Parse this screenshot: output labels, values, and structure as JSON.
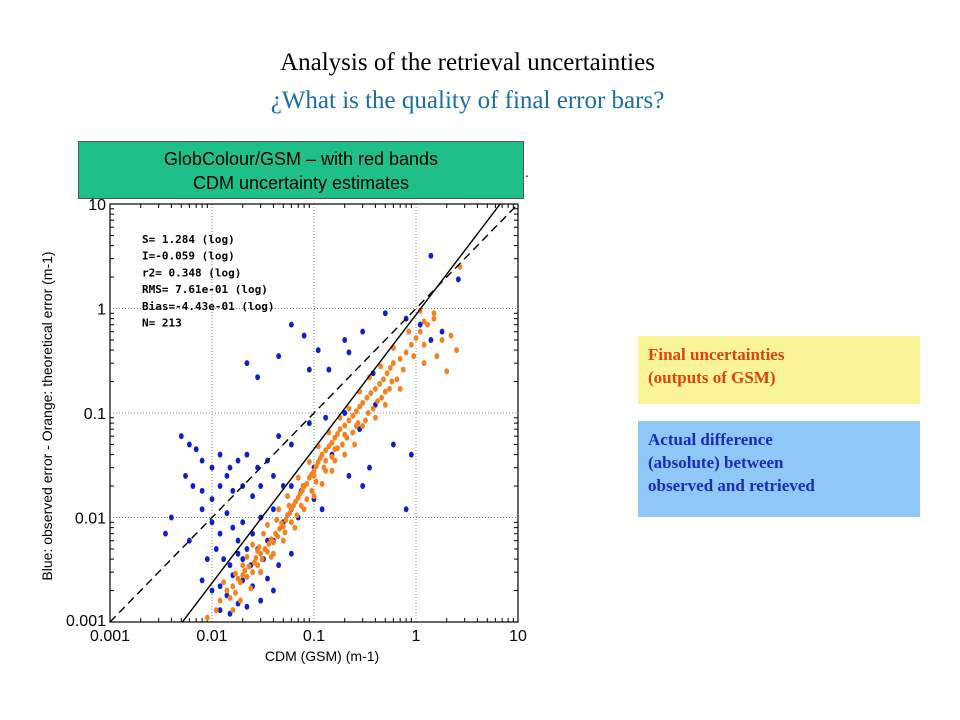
{
  "title": "Analysis of the retrieval uncertainties",
  "subtitle": "¿What is the quality of final error bars?",
  "colors": {
    "subtitle": "#1a6e9e",
    "green_box": "#1fbf8a",
    "final_box_bg": "#fbf59a",
    "final_box_text": "#e0420c",
    "actual_box_bg": "#8fc8f7",
    "actual_box_text": "#1b2bb8",
    "blue_points": "#1020c8",
    "orange_points": "#f58220"
  },
  "label_box": {
    "line1": "GlobColour/GSM – with red bands",
    "line2": "CDM uncertainty estimates"
  },
  "stray_dot": ".",
  "legend": {
    "final": {
      "line1": "Final uncertainties",
      "line2": "(outputs of GSM)"
    },
    "actual": {
      "line1": "Actual difference",
      "line2": "(absolute) between",
      "line3": "observed and retrieved"
    }
  },
  "chart_data": {
    "type": "scatter",
    "xlabel": "CDM (GSM) (m-1)",
    "ylabel": "Blue: observed error - Orange: theoretical error (m-1)",
    "xscale": "log",
    "yscale": "log",
    "xlim": [
      0.001,
      10
    ],
    "ylim": [
      0.001,
      10
    ],
    "grid": true,
    "x_ticks": [
      "0.001",
      "0.01",
      "0.1",
      "1",
      "10"
    ],
    "y_ticks": [
      "0.001",
      "0.01",
      "0.1",
      "1",
      "10"
    ],
    "stats": [
      "S= 1.284 (log)",
      "I=-0.059 (log)",
      "r2= 0.348 (log)",
      "RMS= 7.61e-01 (log)",
      "Bias=-4.43e-01 (log)",
      "N= 213"
    ],
    "lines": [
      {
        "kind": "regression",
        "style": "solid",
        "slope": 1.284,
        "intercept": -0.059
      },
      {
        "kind": "1:1",
        "style": "dashed",
        "slope": 1,
        "intercept": 0
      }
    ],
    "series": [
      {
        "color": "blue",
        "points": [
          [
            0.022,
            0.3
          ],
          [
            0.028,
            0.22
          ],
          [
            0.045,
            0.35
          ],
          [
            0.06,
            0.7
          ],
          [
            0.08,
            0.55
          ],
          [
            0.09,
            0.26
          ],
          [
            0.11,
            0.4
          ],
          [
            0.14,
            0.26
          ],
          [
            0.2,
            0.5
          ],
          [
            0.3,
            0.6
          ],
          [
            0.5,
            0.9
          ],
          [
            0.8,
            0.8
          ],
          [
            1.1,
            0.7
          ],
          [
            1.4,
            0.5
          ],
          [
            1.8,
            0.6
          ],
          [
            2.6,
            1.9
          ],
          [
            1.4,
            3.2
          ],
          [
            0.22,
            0.38
          ],
          [
            0.38,
            0.24
          ],
          [
            0.005,
            0.06
          ],
          [
            0.006,
            0.05
          ],
          [
            0.007,
            0.045
          ],
          [
            0.008,
            0.035
          ],
          [
            0.01,
            0.03
          ],
          [
            0.012,
            0.04
          ],
          [
            0.015,
            0.03
          ],
          [
            0.018,
            0.035
          ],
          [
            0.022,
            0.04
          ],
          [
            0.028,
            0.03
          ],
          [
            0.035,
            0.035
          ],
          [
            0.045,
            0.06
          ],
          [
            0.06,
            0.05
          ],
          [
            0.09,
            0.08
          ],
          [
            0.13,
            0.09
          ],
          [
            0.2,
            0.1
          ],
          [
            0.28,
            0.07
          ],
          [
            0.4,
            0.12
          ],
          [
            0.0055,
            0.025
          ],
          [
            0.0065,
            0.02
          ],
          [
            0.008,
            0.018
          ],
          [
            0.01,
            0.015
          ],
          [
            0.012,
            0.02
          ],
          [
            0.014,
            0.025
          ],
          [
            0.016,
            0.018
          ],
          [
            0.02,
            0.02
          ],
          [
            0.025,
            0.016
          ],
          [
            0.03,
            0.02
          ],
          [
            0.04,
            0.025
          ],
          [
            0.05,
            0.02
          ],
          [
            0.06,
            0.02
          ],
          [
            0.075,
            0.018
          ],
          [
            0.1,
            0.03
          ],
          [
            0.15,
            0.04
          ],
          [
            0.22,
            0.025
          ],
          [
            0.35,
            0.03
          ],
          [
            0.6,
            0.05
          ],
          [
            0.9,
            0.04
          ],
          [
            0.008,
            0.012
          ],
          [
            0.01,
            0.009
          ],
          [
            0.012,
            0.007
          ],
          [
            0.014,
            0.011
          ],
          [
            0.016,
            0.008
          ],
          [
            0.018,
            0.006
          ],
          [
            0.02,
            0.009
          ],
          [
            0.022,
            0.005
          ],
          [
            0.025,
            0.007
          ],
          [
            0.03,
            0.01
          ],
          [
            0.035,
            0.006
          ],
          [
            0.04,
            0.012
          ],
          [
            0.05,
            0.009
          ],
          [
            0.06,
            0.012
          ],
          [
            0.07,
            0.01
          ],
          [
            0.1,
            0.015
          ],
          [
            0.12,
            0.012
          ],
          [
            0.3,
            0.02
          ],
          [
            0.8,
            0.012
          ],
          [
            0.0035,
            0.007
          ],
          [
            0.004,
            0.01
          ],
          [
            0.006,
            0.006
          ],
          [
            0.009,
            0.004
          ],
          [
            0.011,
            0.005
          ],
          [
            0.013,
            0.004
          ],
          [
            0.015,
            0.0035
          ],
          [
            0.018,
            0.0045
          ],
          [
            0.02,
            0.004
          ],
          [
            0.024,
            0.0035
          ],
          [
            0.028,
            0.005
          ],
          [
            0.032,
            0.004
          ],
          [
            0.04,
            0.006
          ],
          [
            0.008,
            0.0025
          ],
          [
            0.01,
            0.002
          ],
          [
            0.012,
            0.0022
          ],
          [
            0.014,
            0.0018
          ],
          [
            0.016,
            0.0028
          ],
          [
            0.02,
            0.0025
          ],
          [
            0.025,
            0.0022
          ],
          [
            0.03,
            0.003
          ],
          [
            0.035,
            0.0026
          ],
          [
            0.045,
            0.0035
          ],
          [
            0.06,
            0.0045
          ],
          [
            0.012,
            0.0013
          ],
          [
            0.015,
            0.0012
          ],
          [
            0.018,
            0.0015
          ],
          [
            0.022,
            0.0014
          ],
          [
            0.03,
            0.0016
          ],
          [
            0.04,
            0.002
          ]
        ]
      },
      {
        "color": "orange",
        "points": [
          [
            0.009,
            0.0011
          ],
          [
            0.011,
            0.0013
          ],
          [
            0.012,
            0.0016
          ],
          [
            0.014,
            0.002
          ],
          [
            0.015,
            0.0017
          ],
          [
            0.016,
            0.0022
          ],
          [
            0.017,
            0.0019
          ],
          [
            0.018,
            0.0026
          ],
          [
            0.019,
            0.0024
          ],
          [
            0.02,
            0.0028
          ],
          [
            0.021,
            0.0031
          ],
          [
            0.022,
            0.0027
          ],
          [
            0.023,
            0.0034
          ],
          [
            0.025,
            0.003
          ],
          [
            0.026,
            0.0037
          ],
          [
            0.027,
            0.0041
          ],
          [
            0.028,
            0.0035
          ],
          [
            0.03,
            0.0045
          ],
          [
            0.031,
            0.004
          ],
          [
            0.033,
            0.005
          ],
          [
            0.035,
            0.0047
          ],
          [
            0.036,
            0.0056
          ],
          [
            0.038,
            0.0062
          ],
          [
            0.04,
            0.0058
          ],
          [
            0.042,
            0.007
          ],
          [
            0.044,
            0.0066
          ],
          [
            0.046,
            0.0078
          ],
          [
            0.048,
            0.0088
          ],
          [
            0.05,
            0.0082
          ],
          [
            0.053,
            0.0095
          ],
          [
            0.055,
            0.0105
          ],
          [
            0.058,
            0.011
          ],
          [
            0.06,
            0.0122
          ],
          [
            0.063,
            0.013
          ],
          [
            0.066,
            0.0142
          ],
          [
            0.07,
            0.0155
          ],
          [
            0.073,
            0.017
          ],
          [
            0.077,
            0.0182
          ],
          [
            0.08,
            0.02
          ],
          [
            0.085,
            0.021
          ],
          [
            0.09,
            0.024
          ],
          [
            0.095,
            0.026
          ],
          [
            0.1,
            0.028
          ],
          [
            0.105,
            0.031
          ],
          [
            0.11,
            0.034
          ],
          [
            0.115,
            0.037
          ],
          [
            0.12,
            0.04
          ],
          [
            0.13,
            0.044
          ],
          [
            0.14,
            0.048
          ],
          [
            0.15,
            0.052
          ],
          [
            0.16,
            0.058
          ],
          [
            0.17,
            0.063
          ],
          [
            0.18,
            0.07
          ],
          [
            0.2,
            0.076
          ],
          [
            0.22,
            0.085
          ],
          [
            0.24,
            0.094
          ],
          [
            0.26,
            0.104
          ],
          [
            0.28,
            0.115
          ],
          [
            0.3,
            0.125
          ],
          [
            0.33,
            0.14
          ],
          [
            0.36,
            0.155
          ],
          [
            0.4,
            0.17
          ],
          [
            0.44,
            0.19
          ],
          [
            0.48,
            0.21
          ],
          [
            0.52,
            0.24
          ],
          [
            0.56,
            0.27
          ],
          [
            0.6,
            0.3
          ],
          [
            0.7,
            0.33
          ],
          [
            0.8,
            0.38
          ],
          [
            0.9,
            0.45
          ],
          [
            1.0,
            0.52
          ],
          [
            1.1,
            0.6
          ],
          [
            1.3,
            0.7
          ],
          [
            1.5,
            0.8
          ],
          [
            1.8,
            0.5
          ],
          [
            2.2,
            0.55
          ],
          [
            2.5,
            0.4
          ],
          [
            1.2,
            0.3
          ],
          [
            1.6,
            0.35
          ],
          [
            2.0,
            0.25
          ],
          [
            2.7,
            2.5
          ],
          [
            1.5,
            0.9
          ],
          [
            1.2,
            0.75
          ],
          [
            0.7,
            0.17
          ],
          [
            0.5,
            0.12
          ],
          [
            0.4,
            0.09
          ],
          [
            0.3,
            0.075
          ],
          [
            0.25,
            0.05
          ],
          [
            0.2,
            0.04
          ],
          [
            0.15,
            0.028
          ],
          [
            0.12,
            0.021
          ],
          [
            0.1,
            0.016
          ],
          [
            0.08,
            0.012
          ],
          [
            0.065,
            0.008
          ],
          [
            0.05,
            0.006
          ],
          [
            0.04,
            0.0045
          ],
          [
            0.03,
            0.003
          ],
          [
            0.024,
            0.0021
          ],
          [
            0.019,
            0.0016
          ],
          [
            0.016,
            0.0013
          ],
          [
            0.035,
            0.0085
          ],
          [
            0.045,
            0.012
          ],
          [
            0.055,
            0.016
          ],
          [
            0.07,
            0.024
          ],
          [
            0.09,
            0.034
          ],
          [
            0.11,
            0.048
          ],
          [
            0.14,
            0.065
          ],
          [
            0.18,
            0.09
          ],
          [
            0.22,
            0.11
          ],
          [
            0.28,
            0.16
          ],
          [
            0.35,
            0.22
          ],
          [
            0.45,
            0.28
          ],
          [
            0.6,
            0.42
          ],
          [
            0.85,
            0.6
          ],
          [
            1.1,
            0.95
          ],
          [
            0.025,
            0.0055
          ],
          [
            0.032,
            0.007
          ],
          [
            0.06,
            0.009
          ],
          [
            0.075,
            0.013
          ],
          [
            0.095,
            0.018
          ],
          [
            0.13,
            0.028
          ],
          [
            0.16,
            0.035
          ],
          [
            0.19,
            0.05
          ],
          [
            0.24,
            0.065
          ],
          [
            0.32,
            0.085
          ],
          [
            0.38,
            0.11
          ],
          [
            0.46,
            0.14
          ],
          [
            0.55,
            0.17
          ],
          [
            0.65,
            0.21
          ],
          [
            0.02,
            0.0035
          ],
          [
            0.028,
            0.0048
          ],
          [
            0.038,
            0.0042
          ],
          [
            0.052,
            0.0072
          ],
          [
            0.068,
            0.0105
          ],
          [
            0.085,
            0.015
          ],
          [
            0.105,
            0.022
          ],
          [
            0.125,
            0.03
          ],
          [
            0.15,
            0.038
          ],
          [
            0.17,
            0.046
          ],
          [
            0.21,
            0.058
          ],
          [
            0.27,
            0.08
          ],
          [
            0.34,
            0.1
          ],
          [
            0.42,
            0.13
          ],
          [
            0.5,
            0.16
          ],
          [
            0.58,
            0.2
          ],
          [
            0.75,
            0.26
          ],
          [
            0.95,
            0.35
          ],
          [
            1.2,
            0.45
          ],
          [
            0.013,
            0.0024
          ],
          [
            0.017,
            0.0029
          ],
          [
            0.022,
            0.0042
          ],
          [
            0.029,
            0.0052
          ],
          [
            0.043,
            0.0095
          ],
          [
            0.057,
            0.013
          ],
          [
            0.078,
            0.02
          ],
          [
            0.1,
            0.025
          ],
          [
            0.13,
            0.035
          ],
          [
            0.16,
            0.045
          ],
          [
            0.2,
            0.062
          ],
          [
            0.26,
            0.075
          ]
        ]
      }
    ]
  }
}
